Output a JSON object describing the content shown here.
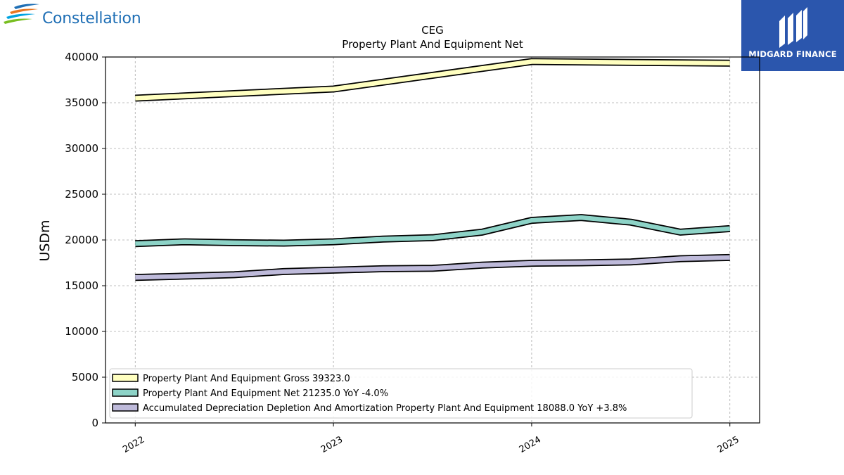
{
  "logos": {
    "left_text": "Constellation",
    "right_text": "MIDGARD FINANCE"
  },
  "colors": {
    "gross": "#ffffc0",
    "net": "#8dd3c7",
    "depreciation": "#bebada",
    "outline": "#000000",
    "brand_blue": "#2b56ad",
    "constellation_blue": "#1f6fb5"
  },
  "chart_data": {
    "type": "line",
    "title": "CEG",
    "subtitle": "Property Plant And Equipment Net",
    "xlabel": "",
    "ylabel": "USDm",
    "ylim": [
      0,
      40000
    ],
    "yticks": [
      0,
      5000,
      10000,
      15000,
      20000,
      25000,
      30000,
      35000,
      40000
    ],
    "xticks": [
      "2022",
      "2023",
      "2024",
      "2025"
    ],
    "xlim": [
      2021.85,
      2025.15
    ],
    "grid": true,
    "legend_position": "lower-left",
    "series": [
      {
        "name": "Property Plant And Equipment Gross",
        "legend": "Property Plant And Equipment Gross  39323.0",
        "color_key": "gross",
        "x": [
          2022.0,
          2023.0,
          2024.0,
          2025.0
        ],
        "values": [
          35500,
          36500,
          39500,
          39323
        ]
      },
      {
        "name": "Property Plant And Equipment Net",
        "legend": "Property Plant And Equipment Net  21235.0 YoY -4.0%",
        "color_key": "net",
        "x": [
          2022.0,
          2022.25,
          2022.5,
          2022.75,
          2023.0,
          2023.25,
          2023.5,
          2023.75,
          2024.0,
          2024.25,
          2024.5,
          2024.75,
          2025.0
        ],
        "values": [
          19600,
          19800,
          19700,
          19650,
          19800,
          20100,
          20250,
          20850,
          22150,
          22450,
          21950,
          20850,
          21235
        ]
      },
      {
        "name": "Accumulated Depreciation Depletion And Amortization Property Plant And Equipment",
        "legend": "Accumulated Depreciation Depletion And Amortization Property Plant And Equipment  18088.0 YoY +3.8%",
        "color_key": "depreciation",
        "x": [
          2022.0,
          2022.25,
          2022.5,
          2022.75,
          2023.0,
          2023.25,
          2023.5,
          2023.75,
          2024.0,
          2024.25,
          2024.5,
          2024.75,
          2025.0
        ],
        "values": [
          15900,
          16050,
          16200,
          16550,
          16700,
          16850,
          16900,
          17250,
          17450,
          17500,
          17600,
          17950,
          18088
        ]
      }
    ]
  }
}
